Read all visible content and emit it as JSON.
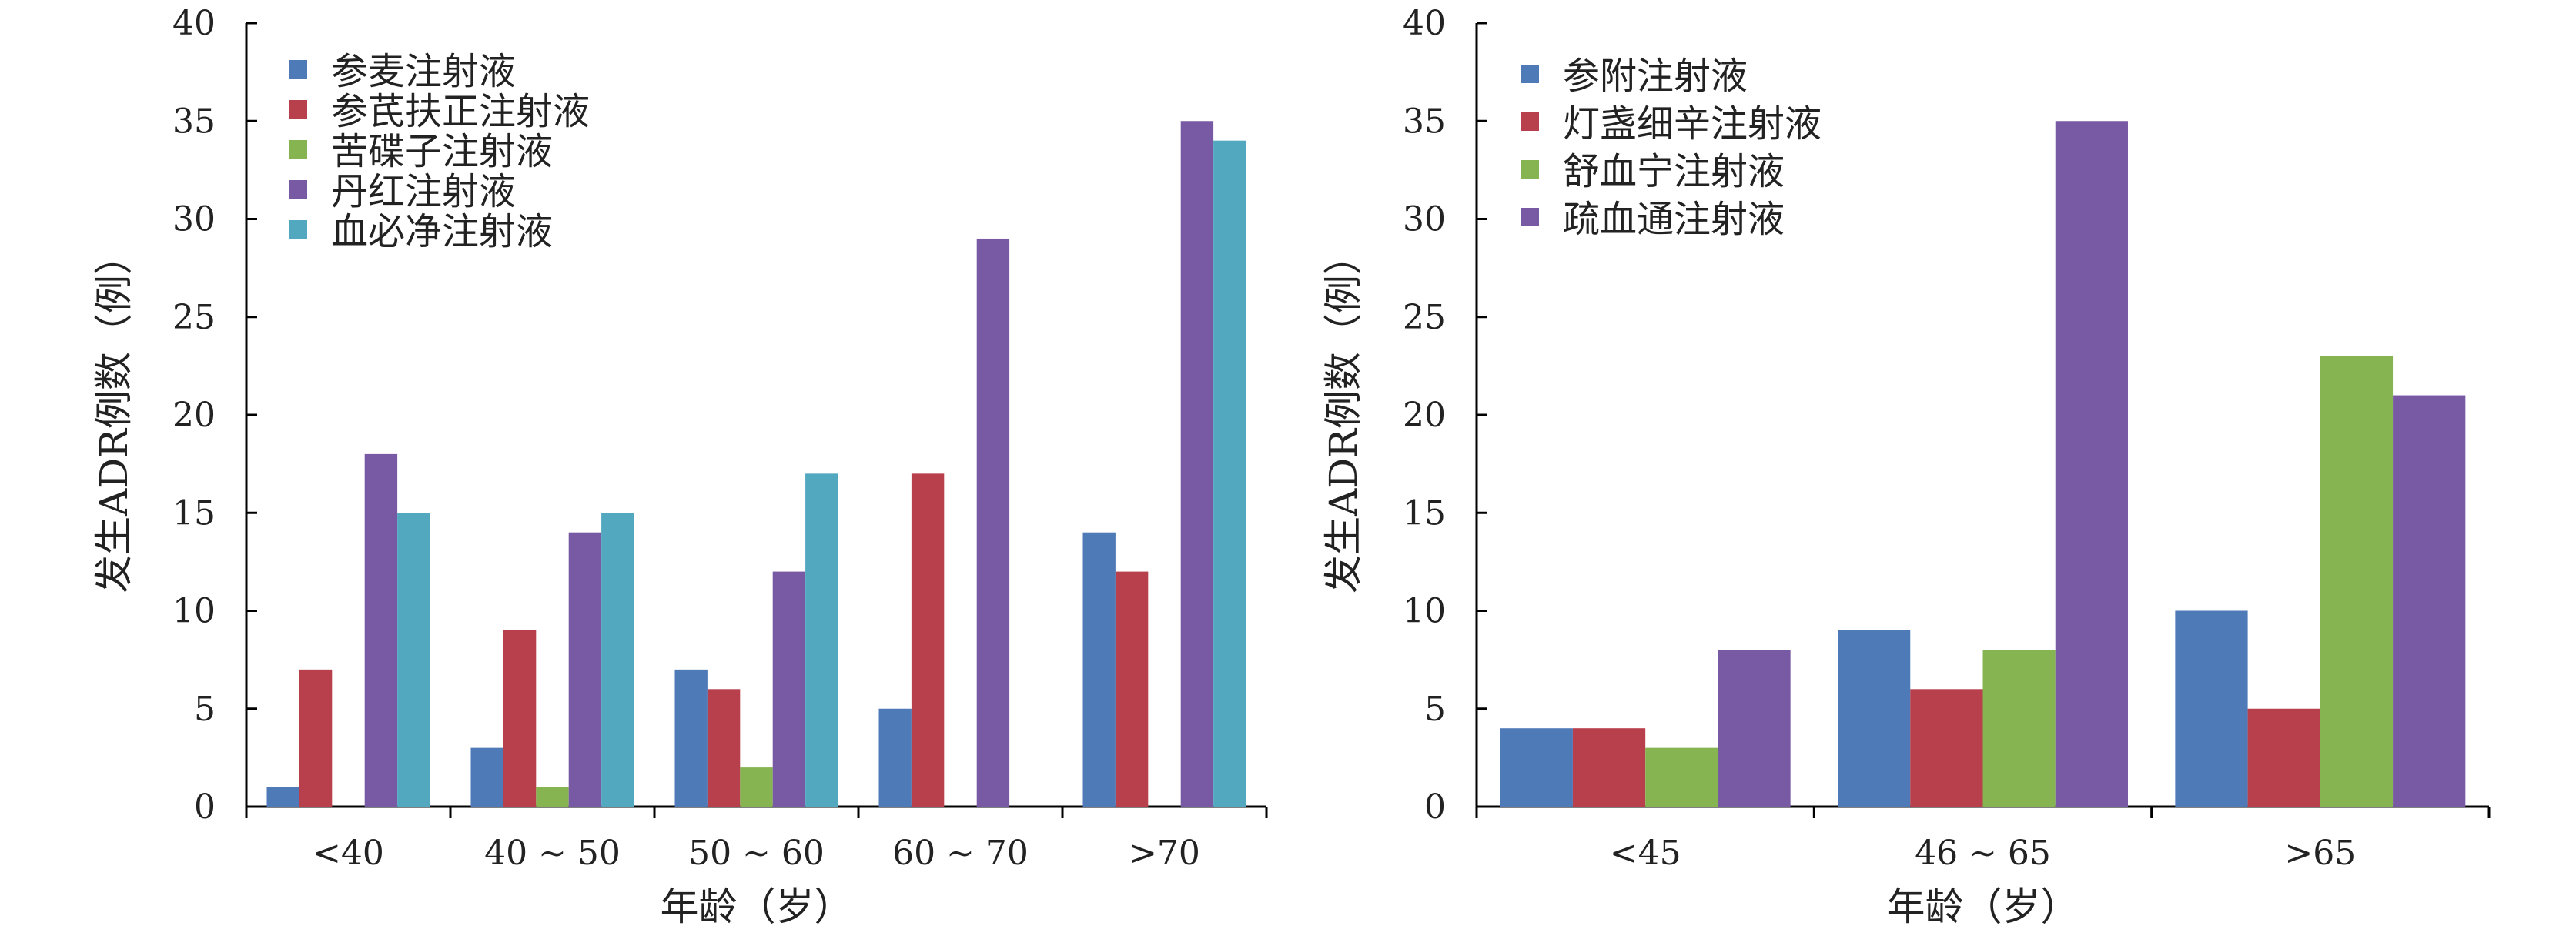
{
  "chart_data": [
    {
      "type": "bar",
      "title": "",
      "categories": [
        "<40",
        "40 ~ 50",
        "50 ~ 60",
        "60 ~ 70",
        ">70"
      ],
      "series": [
        {
          "name": "参麦注射液",
          "color": "#4f7ab8",
          "values": [
            1,
            3,
            7,
            5,
            14
          ]
        },
        {
          "name": "参芪扶正注射液",
          "color": "#b83f4c",
          "values": [
            7,
            9,
            6,
            17,
            12
          ]
        },
        {
          "name": "苦碟子注射液",
          "color": "#86b451",
          "values": [
            0,
            1,
            2,
            0,
            0
          ]
        },
        {
          "name": "丹红注射液",
          "color": "#7859a3",
          "values": [
            18,
            14,
            12,
            29,
            35
          ]
        },
        {
          "name": "血必净注射液",
          "color": "#52a8bf",
          "values": [
            15,
            15,
            17,
            0,
            34
          ]
        }
      ],
      "xlabel": "年龄（岁）",
      "ylabel": "发生ADR例数（例）",
      "ylim": [
        0,
        40
      ],
      "yticks": [
        0,
        5,
        10,
        15,
        20,
        25,
        30,
        35,
        40
      ],
      "grid": false,
      "legend": "top-left"
    },
    {
      "type": "bar",
      "title": "",
      "categories": [
        "<45",
        "46 ~ 65",
        ">65"
      ],
      "series": [
        {
          "name": "参附注射液",
          "color": "#4f7ab8",
          "values": [
            4,
            9,
            10
          ]
        },
        {
          "name": "灯盏细辛注射液",
          "color": "#b83f4c",
          "values": [
            4,
            6,
            5
          ]
        },
        {
          "name": "舒血宁注射液",
          "color": "#86b451",
          "values": [
            3,
            8,
            23
          ]
        },
        {
          "name": "疏血通注射液",
          "color": "#7859a3",
          "values": [
            8,
            35,
            21
          ]
        }
      ],
      "xlabel": "年龄（岁）",
      "ylabel": "发生ADR例数（例）",
      "ylim": [
        0,
        40
      ],
      "yticks": [
        0,
        5,
        10,
        15,
        20,
        25,
        30,
        35,
        40
      ],
      "grid": false,
      "legend": "top-left"
    }
  ]
}
